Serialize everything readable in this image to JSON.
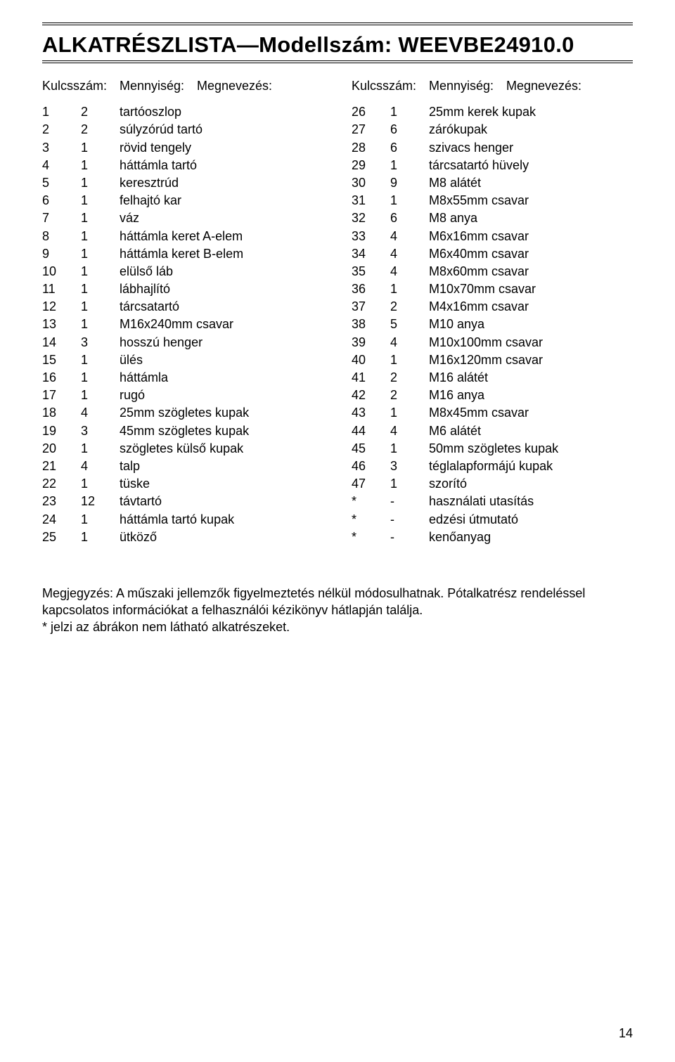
{
  "title": "ALKATRÉSZLISTA—Modellszám: WEEVBE24910.0",
  "headers": {
    "key": "Kulcsszám:",
    "qty": "Mennyiség:",
    "name": "Megnevezés:"
  },
  "left": [
    {
      "k": "1",
      "q": "2",
      "n": "tartóoszlop"
    },
    {
      "k": "2",
      "q": "2",
      "n": "súlyzórúd tartó"
    },
    {
      "k": "3",
      "q": "1",
      "n": "rövid tengely"
    },
    {
      "k": "4",
      "q": "1",
      "n": "háttámla tartó"
    },
    {
      "k": "5",
      "q": "1",
      "n": "keresztrúd"
    },
    {
      "k": "6",
      "q": "1",
      "n": "felhajtó kar"
    },
    {
      "k": "7",
      "q": "1",
      "n": "váz"
    },
    {
      "k": "8",
      "q": "1",
      "n": "háttámla keret A-elem"
    },
    {
      "k": "9",
      "q": "1",
      "n": "háttámla keret B-elem"
    },
    {
      "k": "10",
      "q": "1",
      "n": "elülső láb"
    },
    {
      "k": "11",
      "q": "1",
      "n": "lábhajlító"
    },
    {
      "k": "12",
      "q": "1",
      "n": "tárcsatartó"
    },
    {
      "k": "13",
      "q": "1",
      "n": "M16x240mm csavar"
    },
    {
      "k": "14",
      "q": "3",
      "n": "hosszú henger"
    },
    {
      "k": "15",
      "q": "1",
      "n": "ülés"
    },
    {
      "k": "16",
      "q": "1",
      "n": "háttámla"
    },
    {
      "k": "17",
      "q": "1",
      "n": "rugó"
    },
    {
      "k": "18",
      "q": "4",
      "n": "25mm szögletes kupak"
    },
    {
      "k": "19",
      "q": "3",
      "n": "45mm szögletes kupak"
    },
    {
      "k": "20",
      "q": "1",
      "n": "szögletes külső kupak"
    },
    {
      "k": "21",
      "q": "4",
      "n": "talp"
    },
    {
      "k": "22",
      "q": "1",
      "n": "tüske"
    },
    {
      "k": "23",
      "q": "12",
      "n": "távtartó"
    },
    {
      "k": "24",
      "q": "1",
      "n": "háttámla tartó kupak"
    },
    {
      "k": "25",
      "q": "1",
      "n": "ütköző"
    }
  ],
  "right": [
    {
      "k": "26",
      "q": "1",
      "n": "25mm kerek kupak"
    },
    {
      "k": "27",
      "q": "6",
      "n": "zárókupak"
    },
    {
      "k": "28",
      "q": "6",
      "n": "szivacs henger"
    },
    {
      "k": "29",
      "q": "1",
      "n": "tárcsatartó hüvely"
    },
    {
      "k": "30",
      "q": "9",
      "n": "M8 alátét"
    },
    {
      "k": "31",
      "q": "1",
      "n": "M8x55mm csavar"
    },
    {
      "k": "32",
      "q": "6",
      "n": "M8 anya"
    },
    {
      "k": "33",
      "q": "4",
      "n": "M6x16mm csavar"
    },
    {
      "k": "34",
      "q": "4",
      "n": "M6x40mm csavar"
    },
    {
      "k": "35",
      "q": "4",
      "n": "M8x60mm csavar"
    },
    {
      "k": "36",
      "q": "1",
      "n": "M10x70mm csavar"
    },
    {
      "k": "37",
      "q": "2",
      "n": "M4x16mm csavar"
    },
    {
      "k": "38",
      "q": "5",
      "n": "M10 anya"
    },
    {
      "k": "39",
      "q": "4",
      "n": "M10x100mm csavar"
    },
    {
      "k": "40",
      "q": "1",
      "n": "M16x120mm csavar"
    },
    {
      "k": "41",
      "q": "2",
      "n": "M16 alátét"
    },
    {
      "k": "42",
      "q": "2",
      "n": "M16 anya"
    },
    {
      "k": "43",
      "q": "1",
      "n": "M8x45mm csavar"
    },
    {
      "k": "44",
      "q": "4",
      "n": "M6 alátét"
    },
    {
      "k": "45",
      "q": "1",
      "n": "50mm szögletes kupak"
    },
    {
      "k": "46",
      "q": "3",
      "n": "téglalapformájú kupak"
    },
    {
      "k": "47",
      "q": "1",
      "n": "szorító"
    },
    {
      "k": "*",
      "q": "-",
      "n": "használati utasítás"
    },
    {
      "k": "*",
      "q": "-",
      "n": "edzési útmutató"
    },
    {
      "k": "*",
      "q": "-",
      "n": "kenőanyag"
    }
  ],
  "notes": {
    "line1": "Megjegyzés: A műszaki jellemzők figyelmeztetés nélkül módosulhatnak. Pótalkatrész rendeléssel kapcsolatos információkat a felhasználói kézikönyv hátlapján találja.",
    "line2": "* jelzi az ábrákon nem látható alkatrészeket."
  },
  "page_number": "14"
}
